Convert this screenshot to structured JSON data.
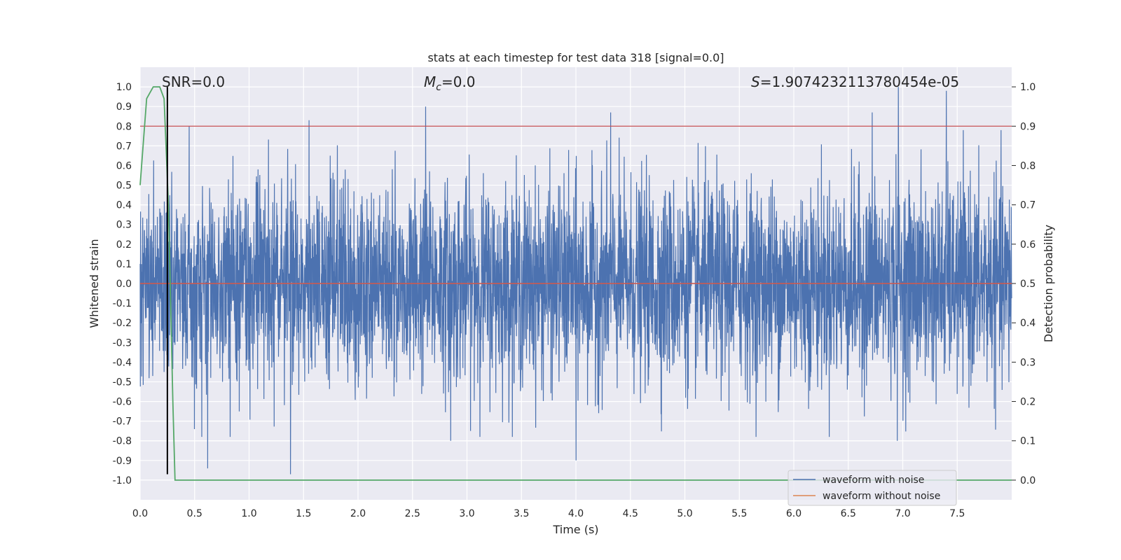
{
  "chart_data": {
    "type": "line",
    "title": "stats at each timestep for test data 318 [signal=0.0]",
    "xlabel": "Time (s)",
    "ylabel": "Whitened strain",
    "y2label": "Detection probability",
    "xlim": [
      0.0,
      8.0
    ],
    "ylim": [
      -1.1,
      1.1
    ],
    "y2lim": [
      -0.05,
      1.05
    ],
    "xticks": [
      "0.0",
      "0.5",
      "1.0",
      "1.5",
      "2.0",
      "2.5",
      "3.0",
      "3.5",
      "4.0",
      "4.5",
      "5.0",
      "5.5",
      "6.0",
      "6.5",
      "7.0",
      "7.5"
    ],
    "yticks": [
      "1.0",
      "0.9",
      "0.8",
      "0.7",
      "0.6",
      "0.5",
      "0.4",
      "0.3",
      "0.2",
      "0.1",
      "0.0",
      "-0.1",
      "-0.2",
      "-0.3",
      "-0.4",
      "-0.5",
      "-0.6",
      "-0.7",
      "-0.8",
      "-0.9",
      "-1.0"
    ],
    "y2ticks": [
      "1.0",
      "0.9",
      "0.8",
      "0.7",
      "0.6",
      "0.5",
      "0.4",
      "0.3",
      "0.2",
      "0.1",
      "0.0"
    ],
    "grid": true,
    "legend_position": "bottom-right",
    "annotations": {
      "snr": "SNR=0.0",
      "mc_symbol": "M",
      "mc_sub": "c",
      "mc_value": "=0.0",
      "s_symbol": "S",
      "s_value": "=1.9074232113780454e-05"
    },
    "series": [
      {
        "name": "waveform with noise",
        "color": "#4c72b0",
        "axis": "left",
        "description_value_range": [
          -0.97,
          1.0
        ],
        "notable_peaks": [
          {
            "x": 0.45,
            "y": 0.8
          },
          {
            "x": 1.55,
            "y": 0.83
          },
          {
            "x": 2.62,
            "y": 0.9
          },
          {
            "x": 4.32,
            "y": 0.87
          },
          {
            "x": 6.72,
            "y": 0.87
          },
          {
            "x": 6.96,
            "y": 1.0
          },
          {
            "x": 7.4,
            "y": 0.98
          },
          {
            "x": 0.62,
            "y": -0.94
          },
          {
            "x": 1.38,
            "y": -0.97
          },
          {
            "x": 4.0,
            "y": -0.9
          },
          {
            "x": 2.85,
            "y": -0.8
          },
          {
            "x": 6.95,
            "y": -0.8
          }
        ]
      },
      {
        "name": "waveform without noise",
        "color": "#dd8452",
        "axis": "left",
        "x": [
          0.0,
          8.0
        ],
        "y": [
          0.0,
          0.0
        ]
      },
      {
        "name": "detection probability",
        "color": "#55a868",
        "axis": "right",
        "x": [
          0.0,
          0.06,
          0.12,
          0.18,
          0.22,
          0.26,
          0.3,
          0.32,
          8.0
        ],
        "y": [
          0.75,
          0.97,
          1.0,
          1.0,
          0.97,
          0.7,
          0.2,
          0.0,
          0.0
        ]
      }
    ],
    "hlines": [
      {
        "axis": "left",
        "y": 0.8,
        "color": "#c44e52"
      },
      {
        "axis": "left",
        "y": 0.0,
        "color": "#c44e52"
      }
    ],
    "vlines": [
      {
        "x": 0.25,
        "color": "#000000"
      }
    ]
  }
}
